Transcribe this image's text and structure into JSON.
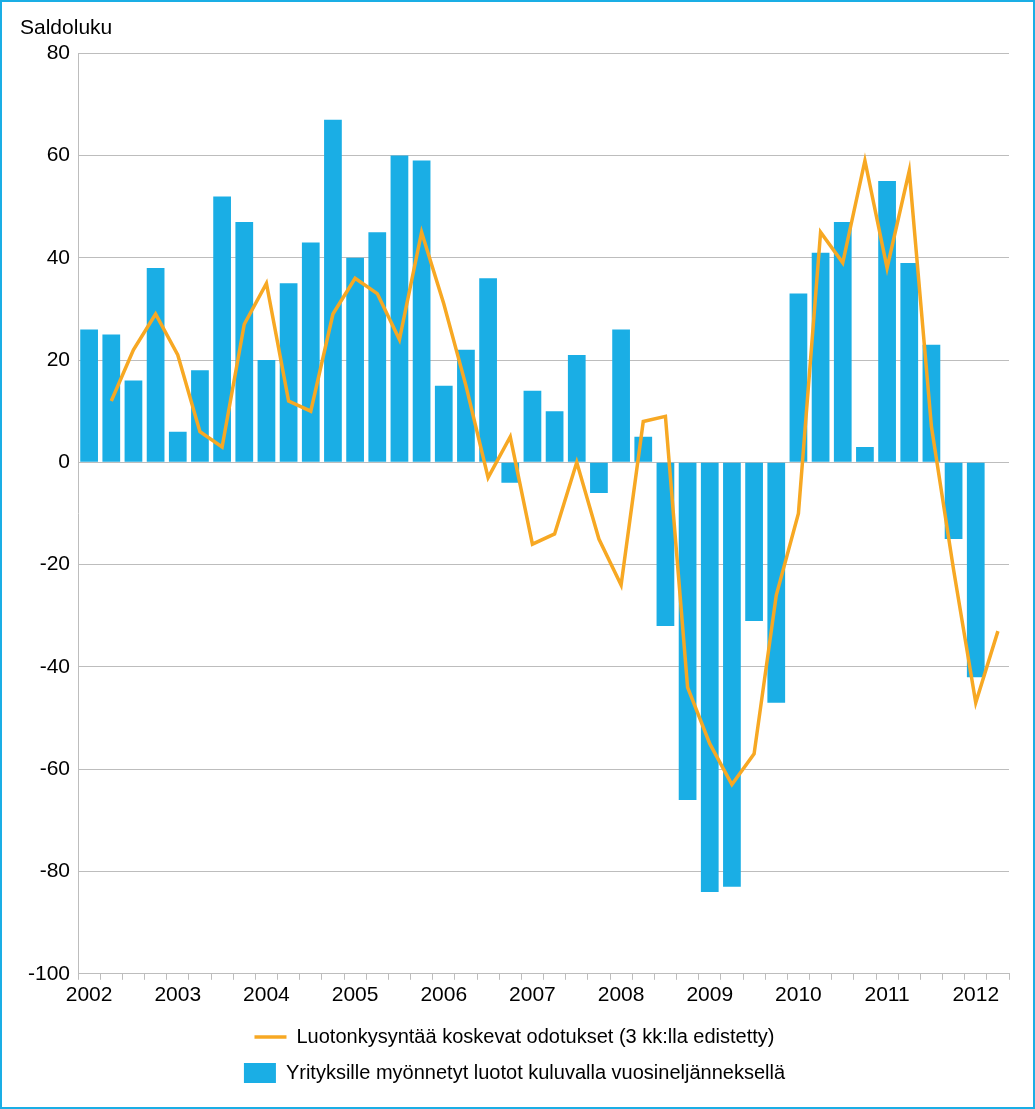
{
  "chart_data": {
    "type": "bar",
    "y_label": "Saldoluku",
    "categories": [
      "2002",
      null,
      null,
      null,
      "2003",
      null,
      null,
      null,
      "2004",
      null,
      null,
      null,
      "2005",
      null,
      null,
      null,
      "2006",
      null,
      null,
      null,
      "2007",
      null,
      null,
      null,
      "2008",
      null,
      null,
      null,
      "2009",
      null,
      null,
      null,
      "2010",
      null,
      null,
      null,
      "2011",
      null,
      null,
      null,
      "2012",
      null
    ],
    "series": [
      {
        "name": "Yrityksille myönnetyt luotot kuluvalla vuosineljänneksellä",
        "type": "bar",
        "color": "#1aaee5",
        "values": [
          26,
          25,
          16,
          38,
          6,
          18,
          52,
          47,
          20,
          35,
          43,
          67,
          40,
          45,
          60,
          59,
          15,
          22,
          36,
          -4,
          14,
          10,
          21,
          -6,
          26,
          5,
          -32,
          -66,
          -84,
          -83,
          -31,
          -47,
          33,
          41,
          47,
          3,
          55,
          39,
          23,
          -15,
          -42,
          null
        ]
      },
      {
        "name": "Luotonkysyntää koskevat odotukset (3 kk:lla edistetty)",
        "type": "line",
        "color": "#f7a823",
        "values": [
          null,
          12,
          22,
          29,
          21,
          6,
          3,
          27,
          35,
          12,
          10,
          29,
          36,
          33,
          24,
          45,
          31,
          15,
          -3,
          5,
          -16,
          -14,
          0,
          -15,
          -24,
          8,
          9,
          -44,
          -55,
          -63,
          -57,
          -26,
          -10,
          45,
          39,
          59,
          38,
          57,
          7,
          -21,
          -47,
          -33
        ]
      }
    ],
    "ylim": [
      -100,
      80
    ],
    "yticks": [
      -100,
      -80,
      -60,
      -40,
      -20,
      0,
      20,
      40,
      60,
      80
    ],
    "grid": true,
    "legend": "bottom"
  }
}
